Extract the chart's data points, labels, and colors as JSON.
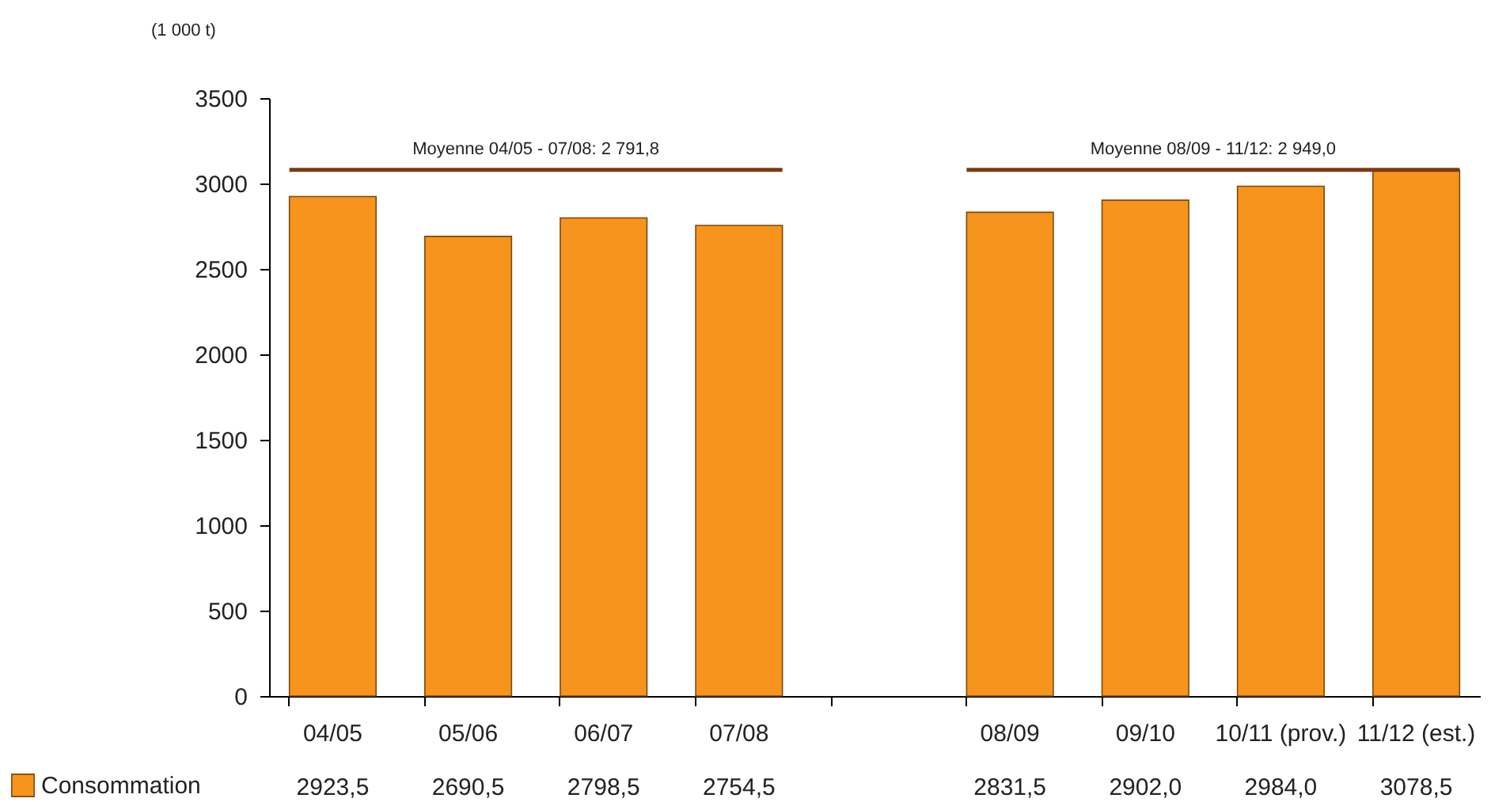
{
  "chart_data": {
    "type": "bar",
    "ylabel": "(1 000 t)",
    "categories": [
      "04/05",
      "05/06",
      "06/07",
      "07/08",
      null,
      "08/09",
      "09/10",
      "10/11 (prov.)",
      "11/12 (est.)"
    ],
    "series": [
      {
        "name": "Consommation",
        "color": "#f7941d",
        "values": [
          2923.5,
          2690.5,
          2798.5,
          2754.5,
          null,
          2831.5,
          2902.0,
          2984.0,
          3078.5
        ],
        "value_labels": [
          "2923,5",
          "2690,5",
          "2798,5",
          "2754,5",
          null,
          "2831,5",
          "2902,0",
          "2984,0",
          "3078,5"
        ]
      }
    ],
    "ylim": [
      0,
      3500
    ],
    "yticks": [
      0,
      500,
      1000,
      1500,
      2000,
      2500,
      3000,
      3500
    ],
    "grid": false,
    "legend": "bottom left",
    "ref_lines": [
      {
        "axis": "y",
        "value": 3080,
        "color": "#7b3a10"
      }
    ],
    "annotations": [
      "Moyenne 04/05 - 07/08: 2 791,8",
      "Moyenne 08/09 - 11/12: 2 949,0"
    ]
  }
}
